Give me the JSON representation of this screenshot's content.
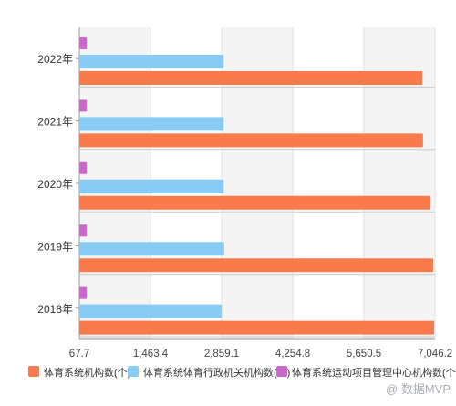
{
  "chart_data": {
    "type": "bar",
    "orientation": "horizontal",
    "categories": [
      "2022年",
      "2021年",
      "2020年",
      "2019年",
      "2018年"
    ],
    "series": [
      {
        "name": "体育系统体育运动项目管理中心机构数(个)",
        "color": "#cc66cc",
        "values": [
          215,
          215,
          215,
          215,
          215
        ]
      },
      {
        "name": "体育系统体育行政机关机构数(个)",
        "color": "#88ccf5",
        "values": [
          2900,
          2900,
          2900,
          2910,
          2860
        ]
      },
      {
        "name": "体育系统机构数(个)",
        "color": "#f97a4a",
        "values": [
          6800,
          6810,
          6960,
          7010,
          7030
        ]
      }
    ],
    "x_ticks": [
      "67.7",
      "1,463.4",
      "2,859.1",
      "4,254.8",
      "5,650.5",
      "7,046.2"
    ],
    "xlim": [
      67.7,
      7046.2
    ],
    "grid": true,
    "legend": [
      {
        "name": "体育系统机构数(个)",
        "color": "#f97a4a"
      },
      {
        "name": "体育系统体育行政机关机构数(个)",
        "color": "#88ccf5"
      },
      {
        "name": "体育系统运动项目管理中心机构数(个)",
        "color": "#cc66cc"
      }
    ],
    "legend_position": "bottom"
  },
  "watermark": "@ 数据MVP"
}
